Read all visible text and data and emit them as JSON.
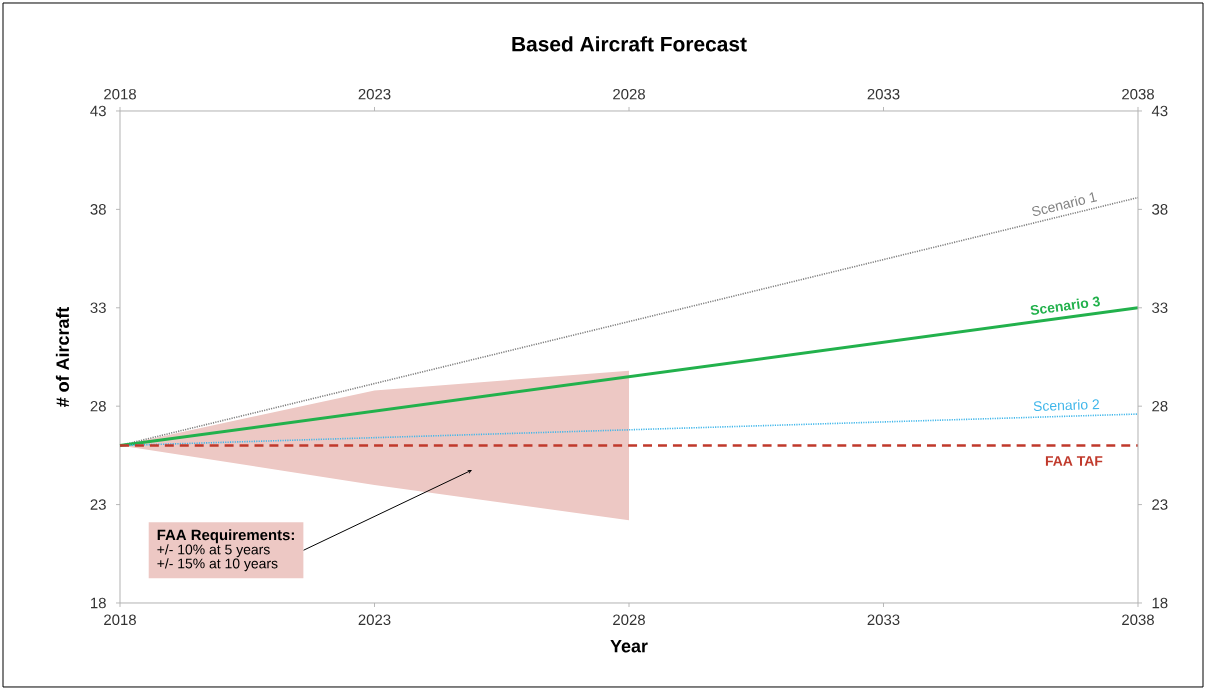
{
  "chart_data": {
    "type": "line",
    "title": "Based Aircraft Forecast",
    "xlabel": "Year",
    "ylabel": "# of Aircraft",
    "xlim": [
      2018,
      2038
    ],
    "xticks": [
      2018,
      2023,
      2028,
      2033,
      2038
    ],
    "x2lim": [
      2018,
      2038
    ],
    "x2ticks": [
      2018,
      2023,
      2028,
      2033,
      2038
    ],
    "ylim": [
      18,
      43
    ],
    "yticks": [
      18,
      23,
      28,
      33,
      38,
      43
    ],
    "y2lim": [
      18,
      43
    ],
    "y2ticks": [
      18,
      23,
      28,
      33,
      38,
      43
    ],
    "grid": false,
    "marker": "none",
    "series": [
      {
        "name": "Scenario 1",
        "color": "#808080",
        "line_style": "dotted",
        "x": [
          2018,
          2038
        ],
        "values": [
          26,
          38.6
        ]
      },
      {
        "name": "Scenario 3",
        "color": "#22b14c",
        "line_style": "solid",
        "x": [
          2018,
          2038
        ],
        "values": [
          26,
          33.0
        ]
      },
      {
        "name": "Scenario 2",
        "color": "#3fb6ea",
        "line_style": "dotted",
        "x": [
          2018,
          2038
        ],
        "values": [
          26,
          27.6
        ]
      },
      {
        "name": "FAA TAF",
        "color": "#c0392b",
        "line_style": "dashed",
        "x": [
          2018,
          2023,
          2028,
          2033,
          2038
        ],
        "values": [
          26,
          26,
          26,
          26,
          26
        ],
        "lower": [
          26,
          24.0,
          22.2,
          null,
          null
        ],
        "upper": [
          26,
          28.8,
          29.8,
          null,
          null
        ]
      }
    ],
    "annotations": [
      "FAA Requirements:",
      "+/- 10% at 5 years",
      "+/- 15% at 10 years"
    ]
  }
}
